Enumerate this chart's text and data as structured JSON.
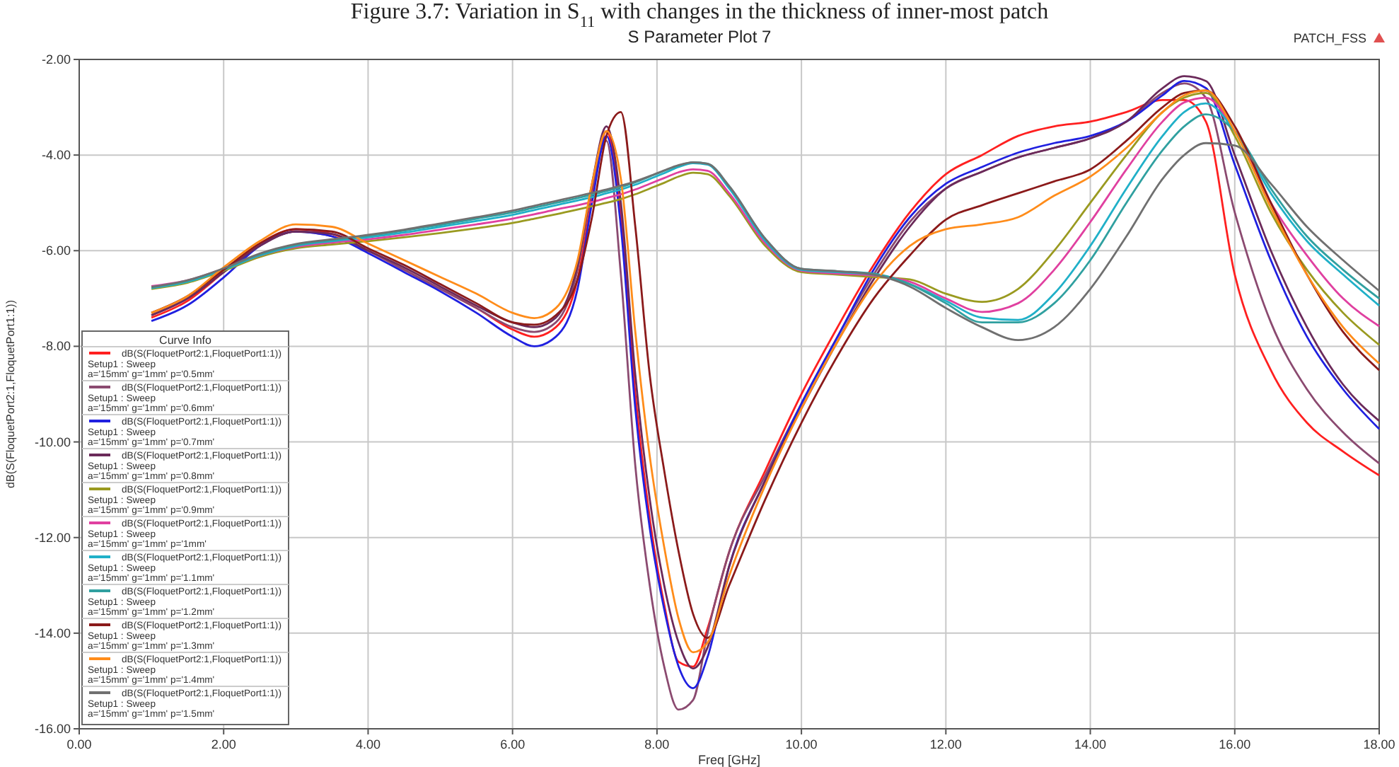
{
  "chart_data": {
    "type": "line",
    "title": "S Parameter Plot 7",
    "xlabel": "Freq [GHz]",
    "ylabel": "dB(S(FloquetPort2:1,FloquetPort1:1))",
    "legend_title": "Curve Info",
    "annotations": [
      "Figure 3.7: Variation in S$_{11}$ with changes in the thickness of inner-most patch",
      "PATCH_FSS"
    ],
    "xlim": [
      0,
      18
    ],
    "ylim": [
      -16,
      -2
    ],
    "xticks": [
      {
        "value": 0,
        "label": "0.00"
      },
      {
        "value": 2,
        "label": "2.00"
      },
      {
        "value": 4,
        "label": "4.00"
      },
      {
        "value": 6,
        "label": "6.00"
      },
      {
        "value": 8,
        "label": "8.00"
      },
      {
        "value": 10,
        "label": "10.00"
      },
      {
        "value": 12,
        "label": "12.00"
      },
      {
        "value": 14,
        "label": "14.00"
      },
      {
        "value": 16,
        "label": "16.00"
      },
      {
        "value": 18,
        "label": "18.00"
      }
    ],
    "yticks": [
      {
        "value": -16,
        "label": "-16.00"
      },
      {
        "value": -14,
        "label": "-14.00"
      },
      {
        "value": -12,
        "label": "-12.00"
      },
      {
        "value": -10,
        "label": "-10.00"
      },
      {
        "value": -8,
        "label": "-8.00"
      },
      {
        "value": -6,
        "label": "-6.00"
      },
      {
        "value": -4,
        "label": "-4.00"
      },
      {
        "value": -2,
        "label": "-2.00"
      }
    ],
    "grid": true,
    "legend": "bottom left",
    "line_style": "solid",
    "marker": "none",
    "x": [
      1,
      1.5,
      2,
      2.5,
      3,
      3.5,
      4,
      4.5,
      5,
      5.5,
      6,
      6.3,
      6.6,
      6.9,
      7.1,
      7.3,
      7.5,
      7.7,
      7.9,
      8.1,
      8.3,
      8.5,
      8.7,
      9,
      9.5,
      10,
      10.5,
      11,
      11.5,
      12,
      12.5,
      13,
      13.5,
      14,
      14.5,
      15,
      15.3,
      15.6,
      16,
      16.5,
      17,
      17.5,
      18
    ],
    "series": [
      {
        "name": "dB(S(FloquetPort2:1,FloquetPort1:1))\nSetup1 : Sweep\na='15mm' g='1mm' p='0.5mm'",
        "color": "#ff2020",
        "values": [
          -7.4,
          -7.05,
          -6.45,
          -5.85,
          -5.55,
          -5.65,
          -6.0,
          -6.4,
          -6.8,
          -7.2,
          -7.65,
          -7.8,
          -7.6,
          -6.6,
          -4.9,
          -3.5,
          -5.3,
          -9.0,
          -11.6,
          -13.4,
          -14.6,
          -14.7,
          -13.9,
          -12.3,
          -10.6,
          -9.0,
          -7.6,
          -6.3,
          -5.2,
          -4.4,
          -4.0,
          -3.6,
          -3.4,
          -3.3,
          -3.1,
          -2.85,
          -2.85,
          -3.3,
          -6.5,
          -8.5,
          -9.6,
          -10.2,
          -10.7
        ]
      },
      {
        "name": "dB(S(FloquetPort2:1,FloquetPort1:1))\nSetup1 : Sweep\na='15mm' g='1mm' p='0.6mm'",
        "color": "#8b4a70",
        "values": [
          -7.35,
          -7.0,
          -6.45,
          -5.9,
          -5.6,
          -5.7,
          -6.0,
          -6.4,
          -6.8,
          -7.2,
          -7.6,
          -7.7,
          -7.5,
          -6.4,
          -4.7,
          -3.7,
          -6.5,
          -10.5,
          -13.0,
          -14.7,
          -15.6,
          -15.4,
          -14.0,
          -12.3,
          -10.7,
          -9.2,
          -7.8,
          -6.5,
          -5.4,
          -4.7,
          -4.35,
          -4.05,
          -3.85,
          -3.65,
          -3.3,
          -2.7,
          -2.5,
          -2.8,
          -5.2,
          -7.5,
          -8.9,
          -9.8,
          -10.45
        ]
      },
      {
        "name": "dB(S(FloquetPort2:1,FloquetPort1:1))\nSetup1 : Sweep\na='15mm' g='1mm' p='0.7mm'",
        "color": "#2020e0",
        "values": [
          -7.47,
          -7.14,
          -6.56,
          -5.9,
          -5.6,
          -5.7,
          -6.05,
          -6.45,
          -6.85,
          -7.3,
          -7.8,
          -8.0,
          -7.8,
          -6.8,
          -5.0,
          -3.6,
          -5.5,
          -9.3,
          -11.8,
          -13.5,
          -14.7,
          -15.15,
          -14.5,
          -12.6,
          -10.8,
          -9.2,
          -7.8,
          -6.4,
          -5.3,
          -4.6,
          -4.25,
          -3.95,
          -3.75,
          -3.6,
          -3.3,
          -2.75,
          -2.45,
          -2.6,
          -4.2,
          -6.2,
          -7.8,
          -8.9,
          -9.73
        ]
      },
      {
        "name": "dB(S(FloquetPort2:1,FloquetPort1:1))\nSetup1 : Sweep\na='15mm' g='1mm' p='0.8mm'",
        "color": "#6b2a5a",
        "values": [
          -7.35,
          -7.0,
          -6.45,
          -5.9,
          -5.6,
          -5.65,
          -6.0,
          -6.35,
          -6.75,
          -7.15,
          -7.5,
          -7.6,
          -7.4,
          -6.3,
          -4.6,
          -3.4,
          -5.0,
          -8.6,
          -11.2,
          -13.0,
          -14.2,
          -14.74,
          -14.3,
          -12.6,
          -10.8,
          -9.3,
          -7.9,
          -6.6,
          -5.5,
          -4.7,
          -4.35,
          -4.05,
          -3.85,
          -3.65,
          -3.3,
          -2.6,
          -2.35,
          -2.45,
          -4.0,
          -6.0,
          -7.6,
          -8.8,
          -9.56
        ]
      },
      {
        "name": "dB(S(FloquetPort2:1,FloquetPort1:1))\nSetup1 : Sweep\na='15mm' g='1mm' p='0.9mm'",
        "color": "#9a9a20",
        "values": [
          -6.8,
          -6.67,
          -6.42,
          -6.13,
          -5.95,
          -5.87,
          -5.8,
          -5.72,
          -5.63,
          -5.53,
          -5.42,
          -5.33,
          -5.24,
          -5.14,
          -5.07,
          -5.0,
          -4.92,
          -4.82,
          -4.7,
          -4.58,
          -4.45,
          -4.37,
          -4.4,
          -4.85,
          -5.9,
          -6.45,
          -6.5,
          -6.55,
          -6.6,
          -6.9,
          -7.07,
          -6.8,
          -6.0,
          -5.0,
          -4.0,
          -3.1,
          -2.8,
          -2.7,
          -3.6,
          -5.2,
          -6.4,
          -7.3,
          -7.97
        ]
      },
      {
        "name": "dB(S(FloquetPort2:1,FloquetPort1:1))\nSetup1 : Sweep\na='15mm' g='1mm' p='1mm'",
        "color": "#e040a0",
        "values": [
          -6.74,
          -6.62,
          -6.38,
          -6.1,
          -5.92,
          -5.83,
          -5.76,
          -5.67,
          -5.56,
          -5.45,
          -5.33,
          -5.24,
          -5.14,
          -5.05,
          -4.98,
          -4.9,
          -4.82,
          -4.72,
          -4.6,
          -4.48,
          -4.36,
          -4.3,
          -4.33,
          -4.8,
          -5.85,
          -6.42,
          -6.48,
          -6.52,
          -6.65,
          -7.0,
          -7.28,
          -7.1,
          -6.4,
          -5.4,
          -4.3,
          -3.3,
          -2.9,
          -2.8,
          -3.5,
          -5.0,
          -6.1,
          -7.0,
          -7.58
        ]
      },
      {
        "name": "dB(S(FloquetPort2:1,FloquetPort1:1))\nSetup1 : Sweep\na='15mm' g='1mm' p='1.1mm'",
        "color": "#20b0c8",
        "values": [
          -6.78,
          -6.65,
          -6.4,
          -6.1,
          -5.9,
          -5.8,
          -5.72,
          -5.62,
          -5.5,
          -5.38,
          -5.25,
          -5.15,
          -5.05,
          -4.95,
          -4.88,
          -4.8,
          -4.72,
          -4.62,
          -4.5,
          -4.38,
          -4.25,
          -4.17,
          -4.2,
          -4.7,
          -5.8,
          -6.4,
          -6.45,
          -6.5,
          -6.7,
          -7.05,
          -7.4,
          -7.45,
          -6.9,
          -5.9,
          -4.7,
          -3.6,
          -3.1,
          -2.92,
          -3.5,
          -4.8,
          -5.8,
          -6.5,
          -7.15
        ]
      },
      {
        "name": "dB(S(FloquetPort2:1,FloquetPort1:1))\nSetup1 : Sweep\na='15mm' g='1mm' p='1.2mm'",
        "color": "#30a0a0",
        "values": [
          -6.76,
          -6.63,
          -6.38,
          -6.08,
          -5.88,
          -5.78,
          -5.69,
          -5.58,
          -5.46,
          -5.33,
          -5.2,
          -5.1,
          -5.0,
          -4.9,
          -4.83,
          -4.75,
          -4.67,
          -4.57,
          -4.45,
          -4.33,
          -4.22,
          -4.15,
          -4.18,
          -4.65,
          -5.75,
          -6.38,
          -6.43,
          -6.48,
          -6.7,
          -7.1,
          -7.5,
          -7.5,
          -7.1,
          -6.2,
          -5.0,
          -3.9,
          -3.4,
          -3.15,
          -3.5,
          -4.7,
          -5.7,
          -6.4,
          -7.0
        ]
      },
      {
        "name": "dB(S(FloquetPort2:1,FloquetPort1:1))\nSetup1 : Sweep\na='15mm' g='1mm' p='1.3mm'",
        "color": "#8b1a1a",
        "values": [
          -7.3,
          -6.95,
          -6.4,
          -5.85,
          -5.55,
          -5.6,
          -5.95,
          -6.3,
          -6.7,
          -7.1,
          -7.5,
          -7.55,
          -7.35,
          -6.6,
          -5.3,
          -3.6,
          -3.1,
          -5.5,
          -8.6,
          -10.6,
          -12.3,
          -13.6,
          -14.1,
          -13.0,
          -11.2,
          -9.6,
          -8.2,
          -7.0,
          -6.1,
          -5.35,
          -5.05,
          -4.8,
          -4.55,
          -4.3,
          -3.7,
          -3.0,
          -2.7,
          -2.65,
          -3.4,
          -5.0,
          -6.5,
          -7.7,
          -8.5
        ]
      },
      {
        "name": "dB(S(FloquetPort2:1,FloquetPort1:1))\nSetup1 : Sweep\na='15mm' g='1mm' p='1.4mm'",
        "color": "#ff8c1a",
        "values": [
          -7.3,
          -6.95,
          -6.35,
          -5.8,
          -5.45,
          -5.5,
          -5.85,
          -6.2,
          -6.55,
          -6.9,
          -7.3,
          -7.41,
          -7.2,
          -6.2,
          -4.6,
          -3.5,
          -4.5,
          -7.7,
          -10.3,
          -12.2,
          -13.7,
          -14.4,
          -14.2,
          -12.8,
          -10.9,
          -9.3,
          -7.9,
          -6.7,
          -5.9,
          -5.55,
          -5.45,
          -5.3,
          -4.85,
          -4.45,
          -3.85,
          -3.1,
          -2.75,
          -2.65,
          -3.5,
          -5.1,
          -6.5,
          -7.6,
          -8.36
        ]
      },
      {
        "name": "dB(S(FloquetPort2:1,FloquetPort1:1))\nSetup1 : Sweep\na='15mm' g='1mm' p='1.5mm'",
        "color": "#707070",
        "values": [
          -6.76,
          -6.62,
          -6.37,
          -6.06,
          -5.86,
          -5.76,
          -5.67,
          -5.56,
          -5.43,
          -5.3,
          -5.16,
          -5.06,
          -4.96,
          -4.86,
          -4.79,
          -4.72,
          -4.64,
          -4.55,
          -4.44,
          -4.32,
          -4.21,
          -4.15,
          -4.18,
          -4.65,
          -5.75,
          -6.38,
          -6.43,
          -6.5,
          -6.75,
          -7.2,
          -7.6,
          -7.87,
          -7.6,
          -6.8,
          -5.7,
          -4.5,
          -4.0,
          -3.75,
          -3.8,
          -4.6,
          -5.5,
          -6.2,
          -6.84
        ]
      }
    ]
  }
}
